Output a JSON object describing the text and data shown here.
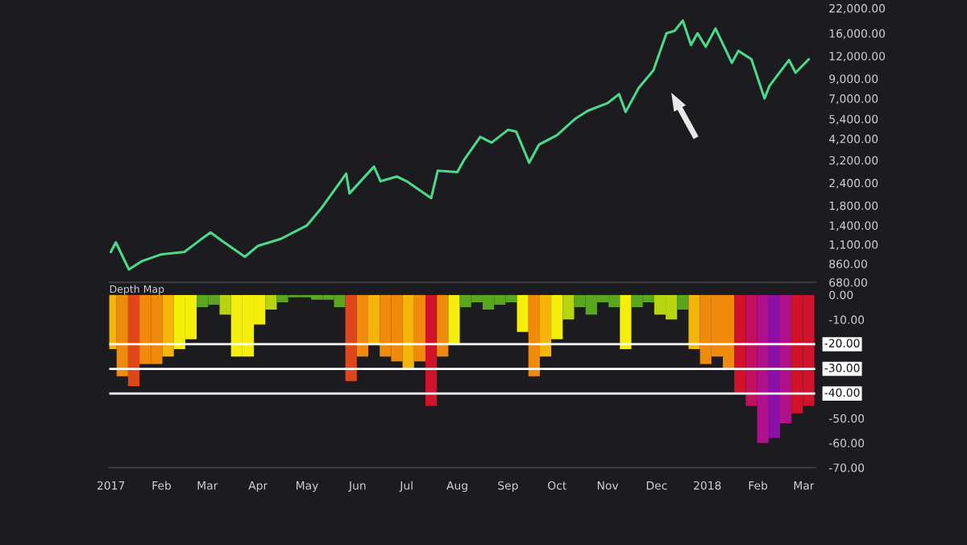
{
  "chart_data": [
    {
      "type": "line",
      "log": "y",
      "tick_labels": "y",
      "grid": false,
      "marker": "none",
      "line_style": "solid",
      "xlim": [
        "2016-12-31",
        "2018-03-08"
      ],
      "ylim": [
        680,
        22000
      ],
      "yticks": [
        {
          "value": 680,
          "label": "680.00"
        },
        {
          "value": 860,
          "label": "860.00"
        },
        {
          "value": 1100,
          "label": "1,100.00"
        },
        {
          "value": 1400,
          "label": "1,400.00"
        },
        {
          "value": 1800,
          "label": "1,800.00"
        },
        {
          "value": 2400,
          "label": "2,400.00"
        },
        {
          "value": 3200,
          "label": "3,200.00"
        },
        {
          "value": 4200,
          "label": "4,200.00"
        },
        {
          "value": 5400,
          "label": "5,400.00"
        },
        {
          "value": 7000,
          "label": "7,000.00"
        },
        {
          "value": 9000,
          "label": "9,000.00"
        },
        {
          "value": 12000,
          "label": "12,000.00"
        },
        {
          "value": 16000,
          "label": "16,000.00"
        },
        {
          "value": 22000,
          "label": "22,000.00"
        }
      ],
      "series": [
        {
          "color": "#4cd98a",
          "x": [
            "2017-01-01",
            "2017-01-04",
            "2017-01-12",
            "2017-01-20",
            "2017-02-01",
            "2017-02-15",
            "2017-02-25",
            "2017-03-03",
            "2017-03-10",
            "2017-03-24",
            "2017-04-01",
            "2017-04-15",
            "2017-05-01",
            "2017-05-10",
            "2017-05-25",
            "2017-05-27",
            "2017-06-11",
            "2017-06-15",
            "2017-06-25",
            "2017-07-01",
            "2017-07-16",
            "2017-07-20",
            "2017-08-01",
            "2017-08-05",
            "2017-08-15",
            "2017-08-22",
            "2017-09-01",
            "2017-09-06",
            "2017-09-14",
            "2017-09-20",
            "2017-10-01",
            "2017-10-12",
            "2017-10-20",
            "2017-11-01",
            "2017-11-08",
            "2017-11-12",
            "2017-11-20",
            "2017-11-29",
            "2017-12-07",
            "2017-12-12",
            "2017-12-17",
            "2017-12-22",
            "2017-12-26",
            "2017-12-31",
            "2018-01-06",
            "2018-01-16",
            "2018-01-20",
            "2018-01-28",
            "2018-02-05",
            "2018-02-08",
            "2018-02-20",
            "2018-02-24",
            "2018-03-04"
          ],
          "values": [
            1000,
            1130,
            800,
            890,
            970,
            1000,
            1170,
            1280,
            1150,
            940,
            1080,
            1180,
            1400,
            1750,
            2700,
            2100,
            2950,
            2450,
            2600,
            2450,
            1980,
            2800,
            2750,
            3200,
            4300,
            4000,
            4700,
            4600,
            3100,
            3900,
            4400,
            5400,
            6000,
            6600,
            7400,
            5900,
            8000,
            10000,
            16000,
            16500,
            18800,
            13800,
            16000,
            13500,
            17000,
            11000,
            12800,
            11500,
            7000,
            8200,
            11400,
            9700,
            11500
          ]
        }
      ]
    },
    {
      "type": "bar",
      "title": "Depth Map",
      "grid": false,
      "xlim": [
        "2016-12-31",
        "2018-03-08"
      ],
      "ylim": [
        -70,
        0
      ],
      "xticks": [
        {
          "value": "2017-01-01",
          "label": "2017"
        },
        {
          "value": "2017-02-01",
          "label": "Feb"
        },
        {
          "value": "2017-03-01",
          "label": "Mar"
        },
        {
          "value": "2017-04-01",
          "label": "Apr"
        },
        {
          "value": "2017-05-01",
          "label": "May"
        },
        {
          "value": "2017-06-01",
          "label": "Jun"
        },
        {
          "value": "2017-07-01",
          "label": "Jul"
        },
        {
          "value": "2017-08-01",
          "label": "Aug"
        },
        {
          "value": "2017-09-01",
          "label": "Sep"
        },
        {
          "value": "2017-10-01",
          "label": "Oct"
        },
        {
          "value": "2017-11-01",
          "label": "Nov"
        },
        {
          "value": "2017-12-01",
          "label": "Dec"
        },
        {
          "value": "2018-01-01",
          "label": "2018"
        },
        {
          "value": "2018-02-01",
          "label": "Feb"
        },
        {
          "value": "2018-03-01",
          "label": "Mar"
        }
      ],
      "yticks": [
        {
          "value": 0,
          "label": "0.00"
        },
        {
          "value": -10,
          "label": "-10.00"
        },
        {
          "value": -50,
          "label": "-50.00"
        },
        {
          "value": -60,
          "label": "-60.00"
        },
        {
          "value": -70,
          "label": "-70.00"
        }
      ],
      "ref_lines": [
        {
          "axis": "y",
          "value": -20,
          "label": "-20.00",
          "color": "#ffffff"
        },
        {
          "axis": "y",
          "value": -30,
          "label": "-30.00",
          "color": "#ffffff"
        },
        {
          "axis": "y",
          "value": -40,
          "label": "-40.00",
          "color": "#ffffff"
        }
      ],
      "x": [
        "2017-01-01",
        "2017-01-08",
        "2017-01-15",
        "2017-01-22",
        "2017-01-29",
        "2017-02-05",
        "2017-02-12",
        "2017-02-19",
        "2017-02-26",
        "2017-03-05",
        "2017-03-12",
        "2017-03-19",
        "2017-03-26",
        "2017-04-02",
        "2017-04-09",
        "2017-04-16",
        "2017-04-23",
        "2017-04-30",
        "2017-05-07",
        "2017-05-14",
        "2017-05-21",
        "2017-05-28",
        "2017-06-04",
        "2017-06-11",
        "2017-06-18",
        "2017-06-25",
        "2017-07-02",
        "2017-07-09",
        "2017-07-16",
        "2017-07-23",
        "2017-07-30",
        "2017-08-06",
        "2017-08-13",
        "2017-08-20",
        "2017-08-27",
        "2017-09-03",
        "2017-09-10",
        "2017-09-17",
        "2017-09-24",
        "2017-10-01",
        "2017-10-08",
        "2017-10-15",
        "2017-10-22",
        "2017-10-29",
        "2017-11-05",
        "2017-11-12",
        "2017-11-19",
        "2017-11-26",
        "2017-12-03",
        "2017-12-10",
        "2017-12-17",
        "2017-12-24",
        "2017-12-31",
        "2018-01-07",
        "2018-01-14",
        "2018-01-21",
        "2018-01-28",
        "2018-02-04",
        "2018-02-11",
        "2018-02-18",
        "2018-02-25",
        "2018-03-04"
      ],
      "values": [
        -22,
        -33,
        -37,
        -28,
        -28,
        -25,
        -22,
        -18,
        -5,
        -4,
        -8,
        -25,
        -25,
        -12,
        -6,
        -3,
        -1,
        -1,
        -2,
        -2,
        -5,
        -35,
        -25,
        -20,
        -25,
        -27,
        -30,
        -27,
        -45,
        -25,
        -20,
        -5,
        -3,
        -6,
        -4,
        -3,
        -15,
        -33,
        -25,
        -18,
        -10,
        -5,
        -8,
        -3,
        -5,
        -22,
        -5,
        -3,
        -8,
        -10,
        -6,
        -22,
        -28,
        -25,
        -30,
        -40,
        -45,
        -60,
        -58,
        -52,
        -48,
        -45
      ],
      "colors": [
        "#f5b40a",
        "#f08a0c",
        "#e0461a",
        "#f08a0c",
        "#f08a0c",
        "#f5b40a",
        "#f5ee0a",
        "#f5ee0a",
        "#5aa61e",
        "#5aa61e",
        "#b8d40f",
        "#f5ee0a",
        "#f5ee0a",
        "#f5ee0a",
        "#b8d40f",
        "#5aa61e",
        "#5aa61e",
        "#5aa61e",
        "#5aa61e",
        "#5aa61e",
        "#5aa61e",
        "#e0461a",
        "#f08a0c",
        "#f5b40a",
        "#f08a0c",
        "#f08a0c",
        "#f5b40a",
        "#f08a0c",
        "#d0122a",
        "#f08a0c",
        "#f5ee0a",
        "#5aa61e",
        "#5aa61e",
        "#5aa61e",
        "#5aa61e",
        "#5aa61e",
        "#f5ee0a",
        "#f08a0c",
        "#f5b40a",
        "#f5ee0a",
        "#b8d40f",
        "#5aa61e",
        "#5aa61e",
        "#5aa61e",
        "#5aa61e",
        "#f5ee0a",
        "#5aa61e",
        "#5aa61e",
        "#b8d40f",
        "#b8d40f",
        "#5aa61e",
        "#f5b40a",
        "#f08a0c",
        "#f08a0c",
        "#f08a0c",
        "#d0122a",
        "#c01060",
        "#b0108a",
        "#8a10a8",
        "#b0108a",
        "#d0122a",
        "#d0122a"
      ]
    }
  ]
}
